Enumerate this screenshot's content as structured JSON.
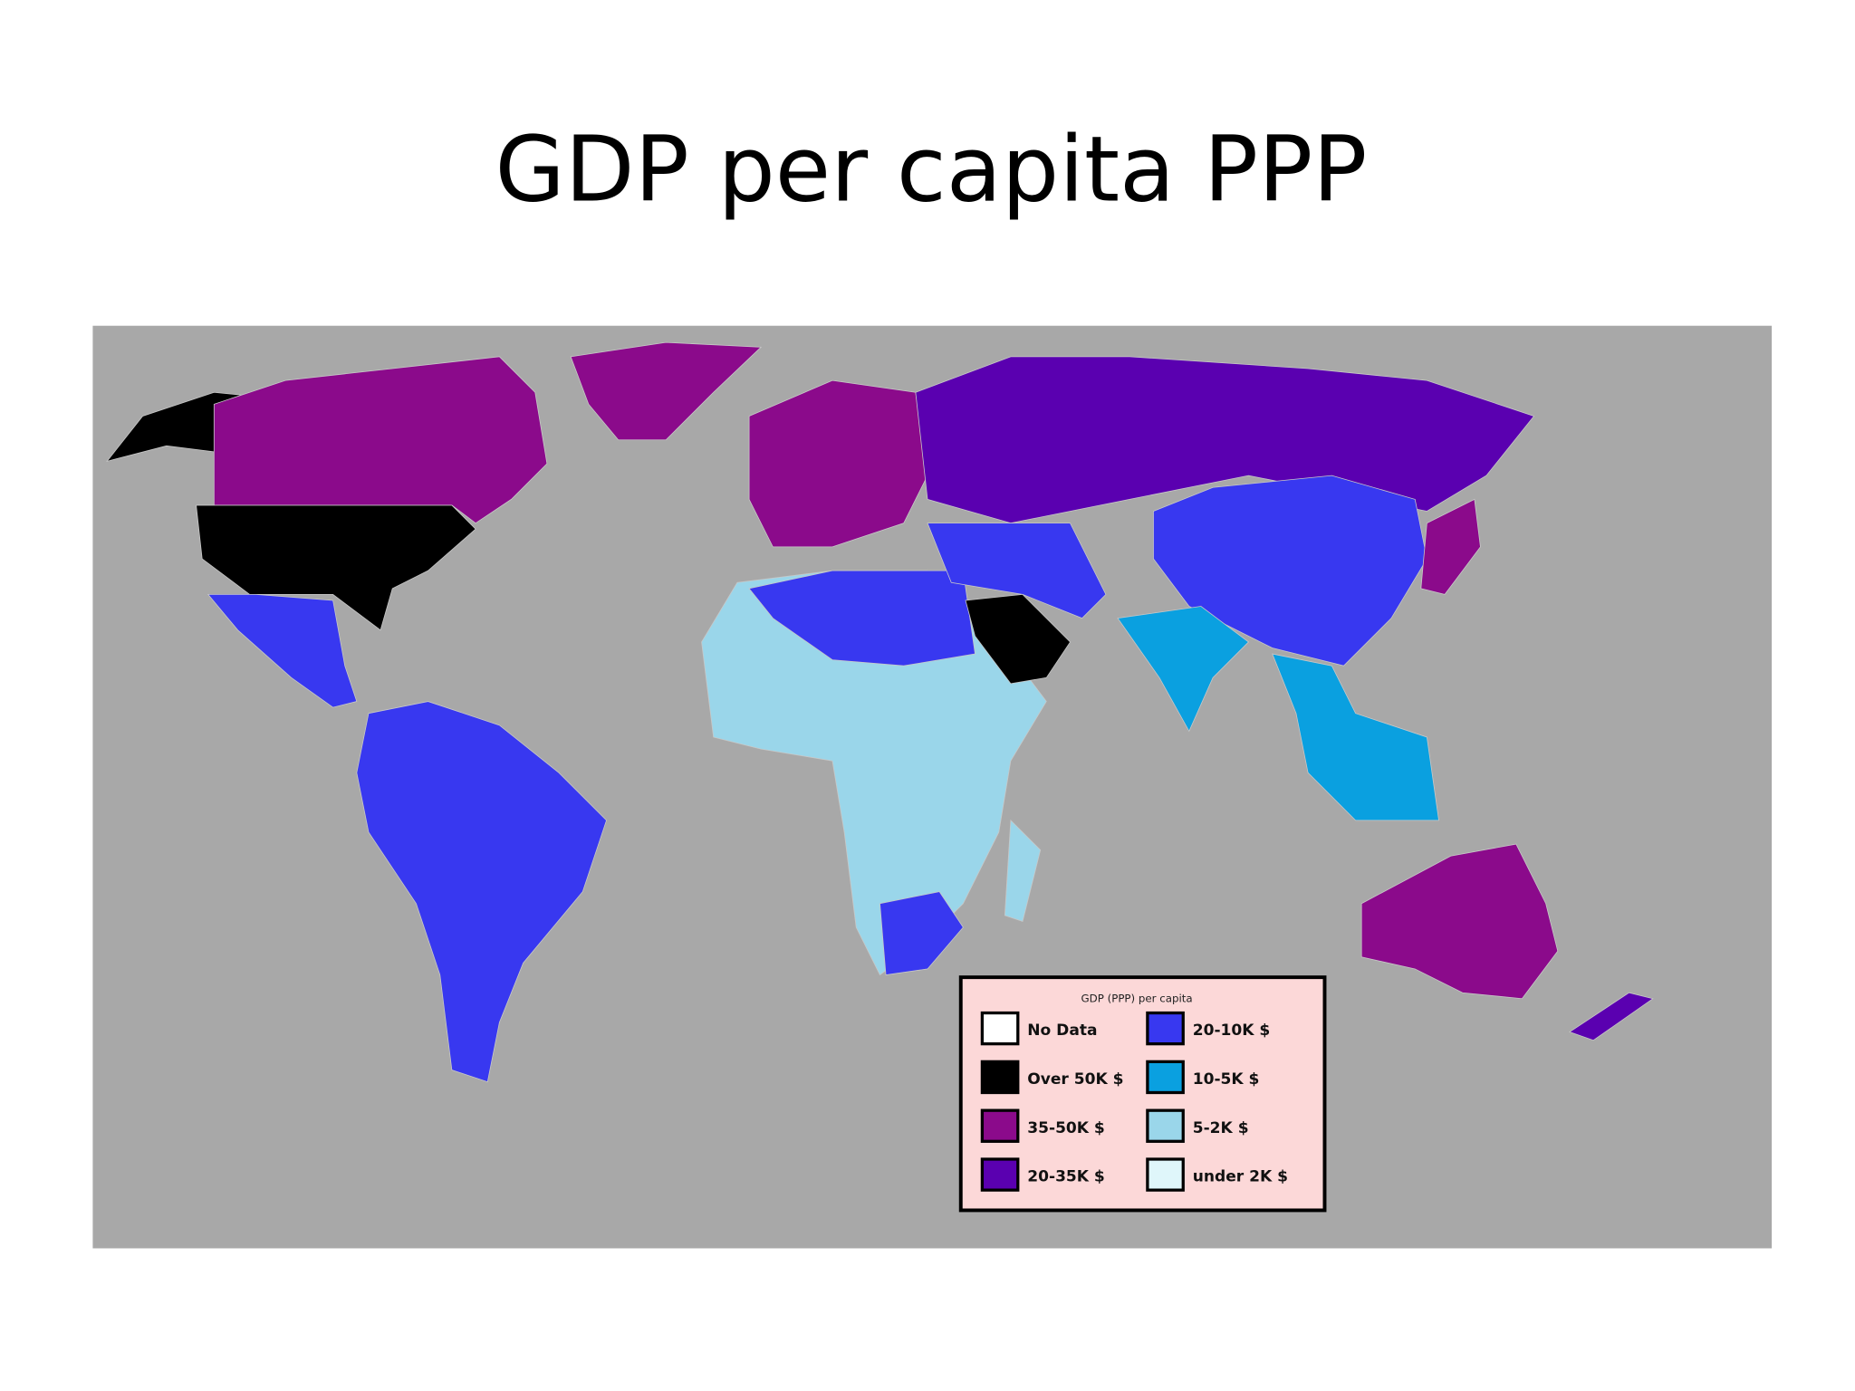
{
  "slide": {
    "title": "GDP per capita PPP"
  },
  "map": {
    "legend": {
      "title": "GDP (PPP) per capita",
      "items": [
        {
          "label": "No Data",
          "color": "#ffffff"
        },
        {
          "label": "Over 50K $",
          "color": "#000000"
        },
        {
          "label": "35-50K $",
          "color": "#8b0a8b"
        },
        {
          "label": "20-35K $",
          "color": "#5a00b0"
        },
        {
          "label": "20-10K $",
          "color": "#3838f0"
        },
        {
          "label": "10-5K $",
          "color": "#0aa0e0"
        },
        {
          "label": "5-2K $",
          "color": "#9ad6ea"
        },
        {
          "label": "under 2K $",
          "color": "#dff6fa"
        }
      ]
    }
  }
}
